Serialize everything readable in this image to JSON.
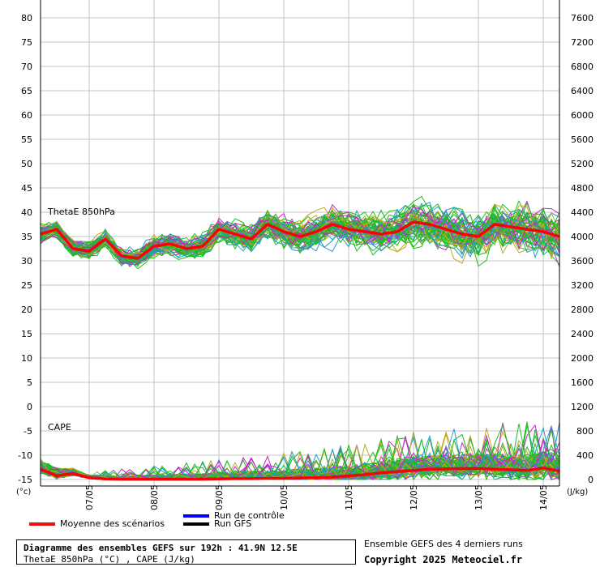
{
  "chart_data": {
    "type": "line",
    "left_axis": {
      "unit": "(°c)",
      "ticks": [
        80,
        75,
        70,
        65,
        60,
        55,
        50,
        45,
        40,
        35,
        30,
        25,
        20,
        15,
        10,
        5,
        0,
        -5,
        -10,
        -15
      ],
      "ylim": [
        -15,
        82
      ]
    },
    "right_axis": {
      "unit": "(J/kg)",
      "ticks": [
        7600,
        7200,
        6800,
        6400,
        6000,
        5600,
        5200,
        4800,
        4400,
        4000,
        3600,
        3200,
        2800,
        2400,
        2000,
        1600,
        1200,
        800,
        400,
        0
      ],
      "ylim": [
        0,
        7760
      ]
    },
    "x_ticks": [
      "07/05",
      "08/05",
      "09/05",
      "10/05",
      "11/05",
      "12/05",
      "13/05",
      "14/05"
    ],
    "panels": {
      "thetae": "ThetaE 850hPa",
      "cape": "CAPE"
    },
    "grid": true,
    "series": [
      {
        "name": "Moyenne des scénarios",
        "panel": "thetae",
        "color": "#ff0000",
        "x_hours": [
          0,
          6,
          12,
          18,
          24,
          30,
          36,
          42,
          48,
          54,
          60,
          66,
          72,
          78,
          84,
          90,
          96,
          102,
          108,
          114,
          120,
          126,
          132,
          138,
          144,
          150,
          156,
          162,
          168,
          174,
          180,
          186,
          192
        ],
        "values": [
          35.5,
          36.5,
          32.5,
          32.0,
          34.5,
          31.0,
          30.5,
          33.0,
          33.5,
          32.5,
          33.0,
          36.5,
          35.5,
          34.5,
          37.5,
          36.0,
          35.0,
          36.0,
          37.5,
          36.5,
          36.0,
          35.5,
          36.0,
          38.0,
          37.5,
          36.5,
          35.5,
          35.0,
          37.5,
          37.0,
          36.5,
          36.0,
          35.0
        ]
      },
      {
        "name": "Moyenne des scénarios",
        "panel": "cape",
        "color": "#ff0000",
        "x_hours": [
          0,
          6,
          12,
          18,
          24,
          30,
          36,
          42,
          48,
          54,
          60,
          66,
          72,
          78,
          84,
          90,
          96,
          102,
          108,
          114,
          120,
          126,
          132,
          138,
          144,
          150,
          156,
          162,
          168,
          174,
          180,
          186,
          192
        ],
        "values": [
          170,
          60,
          100,
          30,
          10,
          5,
          5,
          5,
          5,
          5,
          5,
          10,
          15,
          15,
          20,
          20,
          25,
          30,
          40,
          60,
          80,
          110,
          130,
          150,
          170,
          175,
          180,
          180,
          170,
          160,
          150,
          190,
          140
        ]
      },
      {
        "name": "Run de contrôle",
        "color": "#0000ff",
        "values": []
      },
      {
        "name": "Run GFS",
        "color": "#000000",
        "values": []
      }
    ],
    "ensemble_colors": [
      "#22bb22",
      "#22bb22",
      "#22bb22",
      "#bbaa22",
      "#cc22cc",
      "#2299cc"
    ]
  },
  "legend": {
    "mean": "Moyenne des scénarios",
    "control": "Run de contrôle",
    "gfs": "Run GFS",
    "mean_color": "#e81010",
    "control_color": "#0000ff",
    "gfs_color": "#000000"
  },
  "info": {
    "title": "Diagramme des ensembles GEFS sur 192h : 41.9N 12.5E",
    "subtitle": "ThetaE 850hPa (°C) , CAPE (J/kg)"
  },
  "footer": {
    "ensemble_note": "Ensemble GEFS des 4 derniers runs",
    "copyright": "Copyright 2025 Meteociel.fr"
  }
}
